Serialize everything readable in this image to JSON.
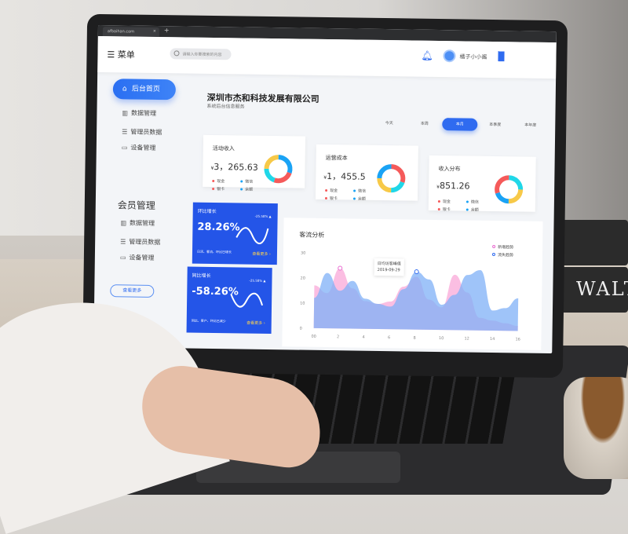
{
  "browser": {
    "tab_title": "afbaihan.com",
    "close": "×",
    "new_tab": "+"
  },
  "header": {
    "menu_icon": "☰",
    "menu_label": "菜单",
    "search_placeholder": "请输入你要搜索的内容",
    "username": "橘子小小酱"
  },
  "sidebar": {
    "home": "后台首页",
    "items": [
      {
        "label": "数据管理",
        "icon": "chart-icon"
      },
      {
        "label": "管理员数据",
        "icon": "list-icon"
      },
      {
        "label": "设备管理",
        "icon": "monitor-icon"
      }
    ],
    "section_title": "会员管理",
    "member_items": [
      {
        "label": "数据管理",
        "icon": "chart-icon"
      },
      {
        "label": "管理员数据",
        "icon": "list-icon"
      },
      {
        "label": "设备管理",
        "icon": "monitor-icon"
      }
    ],
    "more_button": "查看更多"
  },
  "main": {
    "title": "深圳市杰和科技发展有限公司",
    "subtitle": "系统后台信息服务",
    "periods": [
      "今天",
      "本周",
      "本月",
      "本季度",
      "本年度"
    ],
    "active_period": "本月",
    "stats": [
      {
        "label": "活动收入",
        "currency": "¥",
        "value": "3，265.63",
        "legend": [
          "现金",
          "微信",
          "银卡",
          "余额"
        ],
        "segments": [
          {
            "v": 30,
            "c": "#1aa3f5"
          },
          {
            "v": 25,
            "c": "#f55a5a"
          },
          {
            "v": 20,
            "c": "#20d7e8"
          },
          {
            "v": 25,
            "c": "#f7c948"
          }
        ]
      },
      {
        "label": "运营成本",
        "currency": "¥",
        "value": "1，455.5",
        "legend": [
          "现金",
          "微信",
          "银卡",
          "余额"
        ],
        "segments": [
          {
            "v": 30,
            "c": "#f55a5a"
          },
          {
            "v": 20,
            "c": "#20d7e8"
          },
          {
            "v": 25,
            "c": "#f7c948"
          },
          {
            "v": 25,
            "c": "#1aa3f5"
          }
        ]
      },
      {
        "label": "收入分布",
        "currency": "¥",
        "value": "851.26",
        "legend": [
          "现金",
          "微信",
          "银卡",
          "余额"
        ],
        "segments": [
          {
            "v": 25,
            "c": "#20d7e8"
          },
          {
            "v": 25,
            "c": "#f7c948"
          },
          {
            "v": 20,
            "c": "#1aa3f5"
          },
          {
            "v": 30,
            "c": "#f55a5a"
          }
        ]
      }
    ],
    "growth": [
      {
        "label": "环比增长",
        "percent": "28.26%",
        "delta": "-25.58% ▲",
        "note": "日活、客流、环比已增长",
        "more": "查看更多 ›"
      },
      {
        "label": "同比增长",
        "percent": "-58.26%",
        "delta": "-25.58% ▲",
        "note": "同比、客户、环比已减少",
        "more": "查看更多 ›"
      }
    ]
  },
  "chart_data": {
    "type": "area",
    "title": "客流分析",
    "x": [
      0,
      1,
      2,
      3,
      4,
      5,
      6,
      7,
      8,
      9,
      10,
      11,
      12,
      13,
      14,
      15,
      16
    ],
    "xticks": [
      "00",
      "2",
      "4",
      "6",
      "8",
      "10",
      "12",
      "14",
      "16"
    ],
    "yticks": [
      "0",
      "10",
      "20",
      "30"
    ],
    "ylim": [
      0,
      30
    ],
    "series": [
      {
        "name": "新增趋势",
        "color": "#f9a8d8",
        "values": [
          17,
          14,
          24,
          16,
          11,
          10,
          11,
          17,
          21,
          12,
          9,
          22,
          15,
          5,
          4,
          3,
          2
        ]
      },
      {
        "name": "流失趋势",
        "color": "#7fb0f7",
        "values": [
          12,
          22,
          15,
          19,
          12,
          10,
          9,
          16,
          23,
          20,
          10,
          14,
          22,
          24,
          8,
          9,
          13
        ]
      }
    ],
    "legend": "top-right",
    "tooltip": {
      "title": "日均访客峰值",
      "date": "2019-09-29"
    }
  }
}
